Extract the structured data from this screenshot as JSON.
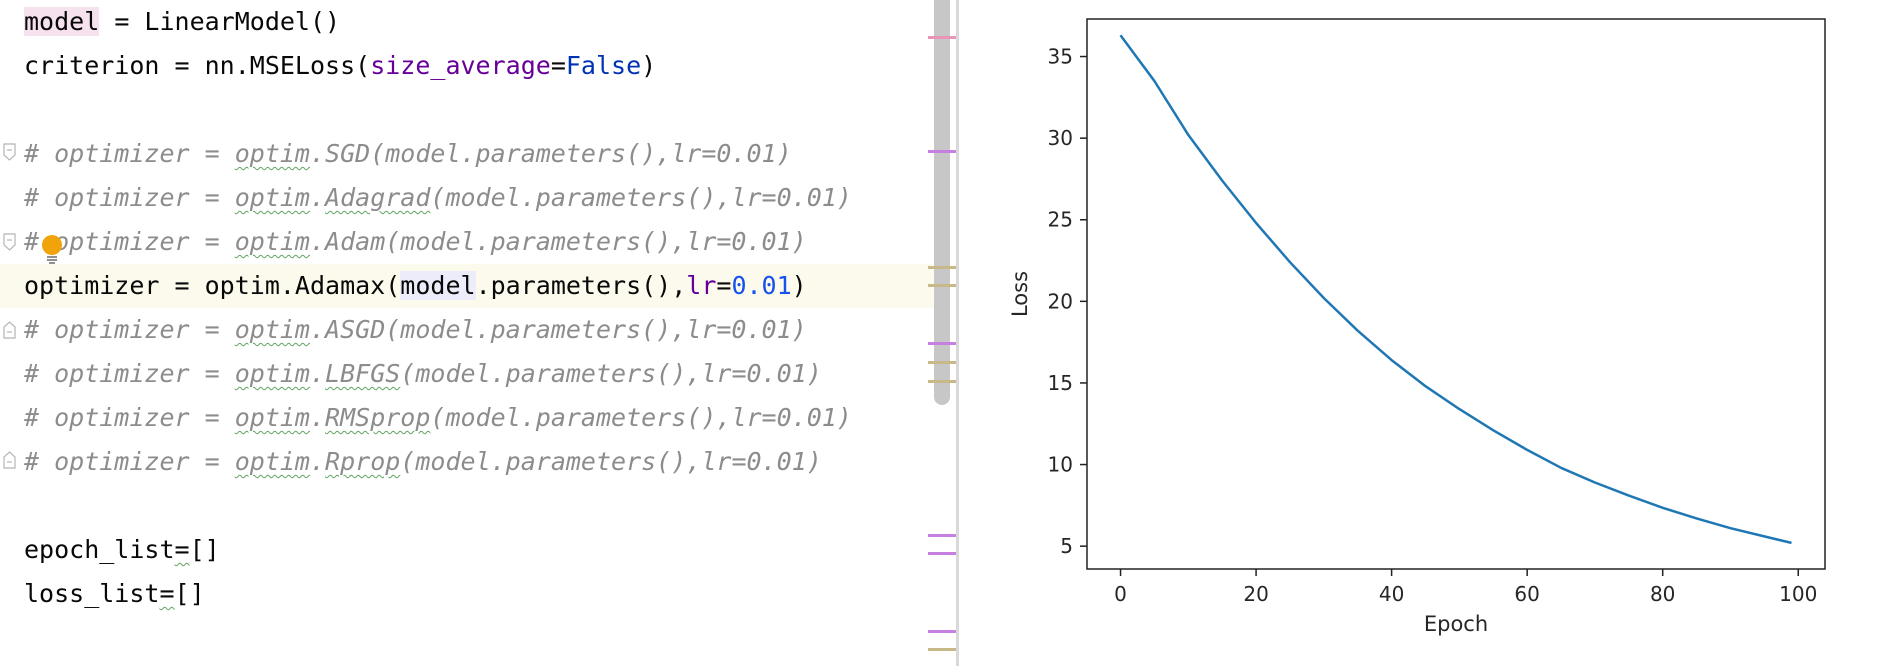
{
  "editor": {
    "lines": [
      {
        "segments": [
          {
            "t": "model",
            "c": "hl-pink"
          },
          {
            "t": " = LinearModel()"
          }
        ]
      },
      {
        "segments": [
          {
            "t": "criterion = nn.MSELoss("
          },
          {
            "t": "size_average",
            "c": "param"
          },
          {
            "t": "="
          },
          {
            "t": "False",
            "c": "kw-blue"
          },
          {
            "t": ")"
          }
        ]
      },
      {
        "segments": []
      },
      {
        "segments": [
          {
            "t": "# optimizer = ",
            "c": "comment"
          },
          {
            "t": "optim",
            "c": "comment squig"
          },
          {
            "t": ".SGD(model.parameters(),lr=0.01)",
            "c": "comment"
          }
        ]
      },
      {
        "segments": [
          {
            "t": "# optimizer = ",
            "c": "comment"
          },
          {
            "t": "optim",
            "c": "comment squig"
          },
          {
            "t": ".",
            "c": "comment"
          },
          {
            "t": "Adagrad",
            "c": "comment squig"
          },
          {
            "t": "(model.parameters(),lr=0.01)",
            "c": "comment"
          }
        ]
      },
      {
        "segments": [
          {
            "t": "# optimizer = ",
            "c": "comment"
          },
          {
            "t": "optim",
            "c": "comment squig"
          },
          {
            "t": ".Adam(model.parameters(),lr=0.01)",
            "c": "comment"
          }
        ]
      },
      {
        "segments": [
          {
            "t": "optimizer = optim.Adamax("
          },
          {
            "t": "model",
            "c": "hl-blue"
          },
          {
            "t": ".parameters(),"
          },
          {
            "t": "lr",
            "c": "param"
          },
          {
            "t": "="
          },
          {
            "t": "0.01",
            "c": "num"
          },
          {
            "t": ")"
          }
        ],
        "current": true
      },
      {
        "segments": [
          {
            "t": "# optimizer = ",
            "c": "comment"
          },
          {
            "t": "optim",
            "c": "comment squig"
          },
          {
            "t": ".ASGD(model.parameters(),lr=0.01)",
            "c": "comment"
          }
        ]
      },
      {
        "segments": [
          {
            "t": "# optimizer = ",
            "c": "comment"
          },
          {
            "t": "optim",
            "c": "comment squig"
          },
          {
            "t": ".",
            "c": "comment"
          },
          {
            "t": "LBFGS",
            "c": "comment squig"
          },
          {
            "t": "(model.parameters(),lr=0.01)",
            "c": "comment"
          }
        ]
      },
      {
        "segments": [
          {
            "t": "# optimizer = ",
            "c": "comment"
          },
          {
            "t": "optim",
            "c": "comment squig"
          },
          {
            "t": ".",
            "c": "comment"
          },
          {
            "t": "RMSprop",
            "c": "comment squig"
          },
          {
            "t": "(model.parameters(),lr=0.01)",
            "c": "comment"
          }
        ]
      },
      {
        "segments": [
          {
            "t": "# optimizer = ",
            "c": "comment"
          },
          {
            "t": "optim",
            "c": "comment squig"
          },
          {
            "t": ".",
            "c": "comment"
          },
          {
            "t": "Rprop",
            "c": "comment squig"
          },
          {
            "t": "(model.parameters(),lr=0.01)",
            "c": "comment"
          }
        ]
      },
      {
        "segments": []
      },
      {
        "segments": [
          {
            "t": "epoch_list"
          },
          {
            "t": "=",
            "c": "squig"
          },
          {
            "t": "[]"
          }
        ]
      },
      {
        "segments": [
          {
            "t": "loss_list"
          },
          {
            "t": "=",
            "c": "squig"
          },
          {
            "t": "[]"
          }
        ]
      }
    ],
    "icons": {
      "fold": "fold-marker-icon",
      "intention": "lightbulb-icon"
    },
    "colors": {
      "mark_purple": "#c77fe0",
      "mark_pink": "#e895b8",
      "mark_tan": "#c8b98a"
    }
  },
  "chart_data": {
    "type": "line",
    "title": "",
    "xlabel": "Epoch",
    "ylabel": "Loss",
    "xlim": [
      -4.95,
      103.95
    ],
    "ylim": [
      3.6,
      37.3
    ],
    "xticks": [
      0,
      20,
      40,
      60,
      80,
      100
    ],
    "yticks": [
      5,
      10,
      15,
      20,
      25,
      30,
      35
    ],
    "series": [
      {
        "color": "#1f77b4",
        "x": [
          0,
          5,
          10,
          15,
          20,
          25,
          30,
          35,
          40,
          45,
          50,
          55,
          60,
          65,
          70,
          75,
          80,
          85,
          90,
          95,
          99
        ],
        "y": [
          36.3,
          33.5,
          30.2,
          27.4,
          24.8,
          22.4,
          20.2,
          18.2,
          16.4,
          14.8,
          13.4,
          12.1,
          10.9,
          9.8,
          8.9,
          8.1,
          7.35,
          6.7,
          6.1,
          5.6,
          5.2
        ]
      }
    ]
  }
}
